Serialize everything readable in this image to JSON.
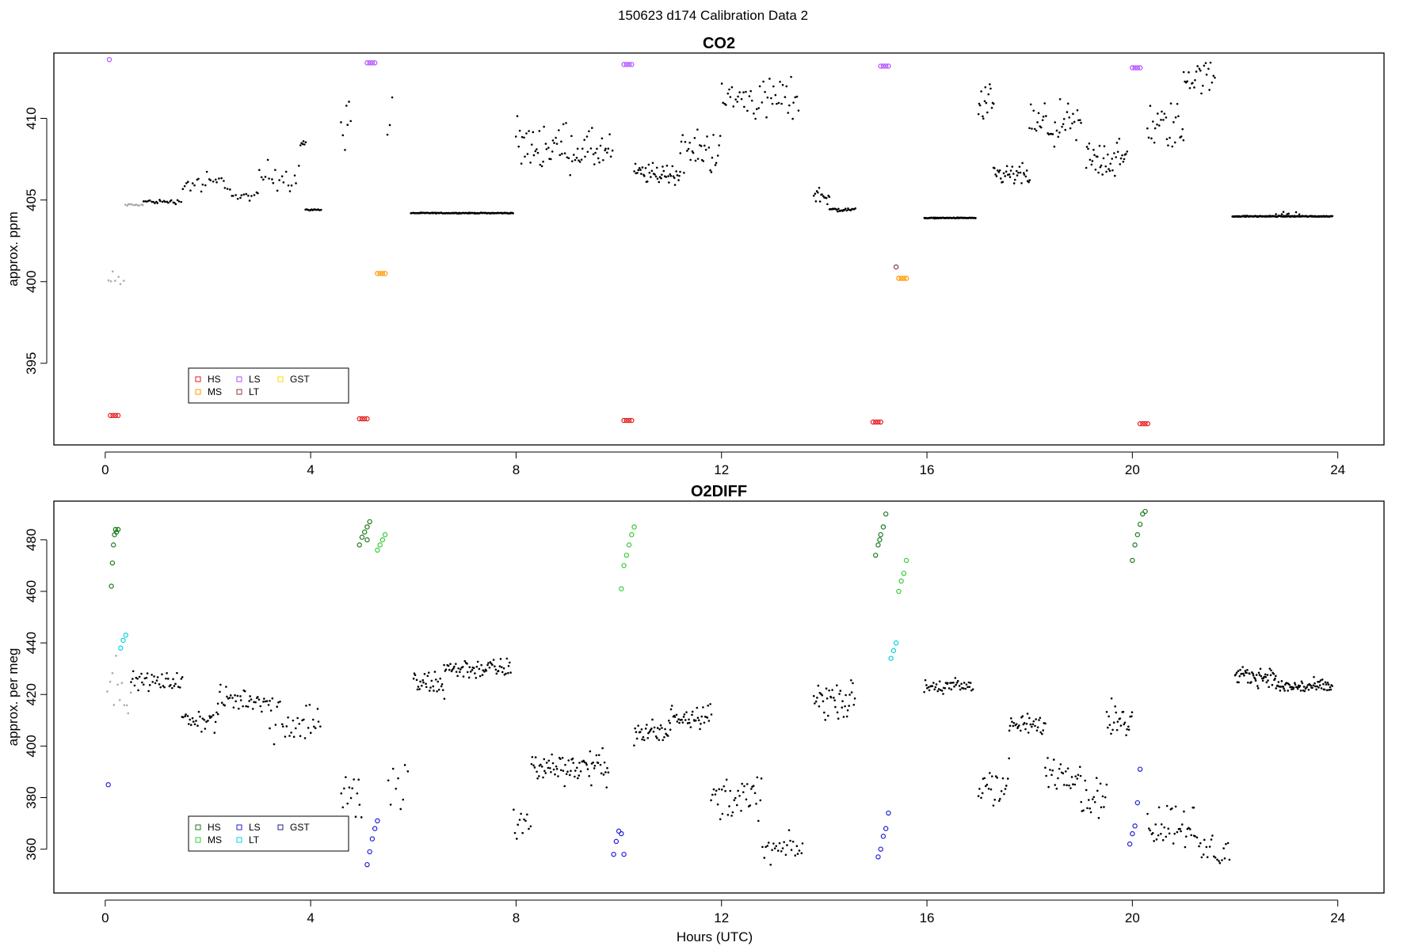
{
  "figure": {
    "suptitle": "150623   d174   Calibration Data 2",
    "xlabel": "Hours (UTC)"
  },
  "chart_data": [
    {
      "type": "scatter",
      "title": "CO2",
      "xlabel": "",
      "ylabel": "approx. ppm",
      "xlim": [
        -1.0,
        24.9
      ],
      "ylim": [
        390.0,
        414.0
      ],
      "xticks": [
        0,
        4,
        8,
        12,
        16,
        20,
        24
      ],
      "yticks": [
        395,
        400,
        405,
        410
      ],
      "grid": false,
      "legend": {
        "placement": "bottom-left",
        "entries": [
          {
            "label": "HS",
            "color": "#e41a1c"
          },
          {
            "label": "MS",
            "color": "#ff9900"
          },
          {
            "label": "LS",
            "color": "#b24fff"
          },
          {
            "label": "LT",
            "color": "#8b3a3a"
          },
          {
            "label": "GST",
            "color": "#ffd700"
          }
        ]
      },
      "series": [
        {
          "name": "HS",
          "color": "#e41a1c",
          "marker": "open-circle",
          "points": [
            [
              0.1,
              391.8
            ],
            [
              0.15,
              391.8
            ],
            [
              0.2,
              391.8
            ],
            [
              0.25,
              391.8
            ],
            [
              4.95,
              391.6
            ],
            [
              5.0,
              391.6
            ],
            [
              5.05,
              391.6
            ],
            [
              5.1,
              391.6
            ],
            [
              10.1,
              391.5
            ],
            [
              10.15,
              391.5
            ],
            [
              10.2,
              391.5
            ],
            [
              10.25,
              391.5
            ],
            [
              14.95,
              391.4
            ],
            [
              15.0,
              391.4
            ],
            [
              15.05,
              391.4
            ],
            [
              15.1,
              391.4
            ],
            [
              20.15,
              391.3
            ],
            [
              20.2,
              391.3
            ],
            [
              20.25,
              391.3
            ],
            [
              20.3,
              391.3
            ]
          ]
        },
        {
          "name": "MS",
          "color": "#ff9900",
          "marker": "open-circle",
          "points": [
            [
              5.3,
              400.5
            ],
            [
              5.35,
              400.5
            ],
            [
              5.4,
              400.5
            ],
            [
              5.45,
              400.5
            ],
            [
              15.45,
              400.2
            ],
            [
              15.5,
              400.2
            ],
            [
              15.55,
              400.2
            ],
            [
              15.6,
              400.2
            ]
          ]
        },
        {
          "name": "LS",
          "color": "#b24fff",
          "marker": "open-circle",
          "points": [
            [
              0.08,
              413.6
            ],
            [
              5.1,
              413.4
            ],
            [
              5.15,
              413.4
            ],
            [
              5.2,
              413.4
            ],
            [
              5.25,
              413.4
            ],
            [
              10.1,
              413.3
            ],
            [
              10.15,
              413.3
            ],
            [
              10.2,
              413.3
            ],
            [
              10.25,
              413.3
            ],
            [
              15.1,
              413.2
            ],
            [
              15.15,
              413.2
            ],
            [
              15.2,
              413.2
            ],
            [
              15.25,
              413.2
            ],
            [
              20.0,
              413.1
            ],
            [
              20.05,
              413.1
            ],
            [
              20.1,
              413.1
            ],
            [
              20.15,
              413.1
            ]
          ]
        },
        {
          "name": "LT",
          "color": "#8b3a3a",
          "marker": "open-circle",
          "points": [
            [
              15.4,
              400.9
            ]
          ]
        },
        {
          "name": "GST",
          "color": "#ffd700",
          "marker": "open-circle",
          "points": []
        }
      ]
    },
    {
      "type": "scatter",
      "title": "O2DIFF",
      "xlabel": "Hours (UTC)",
      "ylabel": "approx. per meg",
      "xlim": [
        -1.0,
        24.9
      ],
      "ylim": [
        343.0,
        495.0
      ],
      "xticks": [
        0,
        4,
        8,
        12,
        16,
        20,
        24
      ],
      "yticks": [
        360,
        380,
        400,
        420,
        440,
        460,
        480
      ],
      "grid": false,
      "legend": {
        "placement": "bottom-left",
        "entries": [
          {
            "label": "HS",
            "color": "#1a7a1a"
          },
          {
            "label": "MS",
            "color": "#33cc33"
          },
          {
            "label": "LS",
            "color": "#1f1fd6"
          },
          {
            "label": "LT",
            "color": "#00d5e0"
          },
          {
            "label": "GST",
            "color": "#1f1f8f"
          }
        ]
      },
      "series": [
        {
          "name": "HS",
          "color": "#1a7a1a",
          "marker": "open-circle",
          "points": [
            [
              0.12,
              462
            ],
            [
              0.14,
              471
            ],
            [
              0.16,
              478
            ],
            [
              0.18,
              482
            ],
            [
              0.2,
              484
            ],
            [
              0.22,
              483
            ],
            [
              0.25,
              484
            ],
            [
              4.95,
              478
            ],
            [
              5.0,
              481
            ],
            [
              5.05,
              483
            ],
            [
              5.1,
              485
            ],
            [
              5.15,
              487
            ],
            [
              5.1,
              480
            ],
            [
              15.0,
              474
            ],
            [
              15.05,
              478
            ],
            [
              15.1,
              482
            ],
            [
              15.15,
              485
            ],
            [
              15.2,
              490
            ],
            [
              15.08,
              480
            ],
            [
              20.0,
              472
            ],
            [
              20.05,
              478
            ],
            [
              20.1,
              482
            ],
            [
              20.15,
              486
            ],
            [
              20.2,
              490
            ],
            [
              20.25,
              491
            ]
          ]
        },
        {
          "name": "MS",
          "color": "#33cc33",
          "marker": "open-circle",
          "points": [
            [
              5.3,
              476
            ],
            [
              5.35,
              478
            ],
            [
              5.4,
              480
            ],
            [
              5.45,
              482
            ],
            [
              10.05,
              461
            ],
            [
              10.1,
              470
            ],
            [
              10.15,
              474
            ],
            [
              10.2,
              478
            ],
            [
              10.25,
              482
            ],
            [
              10.3,
              485
            ],
            [
              15.45,
              460
            ],
            [
              15.5,
              464
            ],
            [
              15.55,
              467
            ],
            [
              15.6,
              472
            ]
          ]
        },
        {
          "name": "LS",
          "color": "#1f1fd6",
          "marker": "open-circle",
          "points": [
            [
              0.06,
              385
            ],
            [
              5.1,
              354
            ],
            [
              5.15,
              359
            ],
            [
              5.2,
              364
            ],
            [
              5.25,
              368
            ],
            [
              5.3,
              371
            ],
            [
              9.9,
              358
            ],
            [
              9.95,
              363
            ],
            [
              10.0,
              367
            ],
            [
              10.05,
              366
            ],
            [
              10.1,
              358
            ],
            [
              15.05,
              357
            ],
            [
              15.1,
              360
            ],
            [
              15.15,
              365
            ],
            [
              15.2,
              368
            ],
            [
              15.25,
              374
            ],
            [
              19.95,
              362
            ],
            [
              20.0,
              366
            ],
            [
              20.05,
              369
            ],
            [
              20.1,
              378
            ],
            [
              20.15,
              391
            ]
          ]
        },
        {
          "name": "LT",
          "color": "#00d5e0",
          "marker": "open-circle",
          "points": [
            [
              0.3,
              438
            ],
            [
              0.35,
              441
            ],
            [
              0.4,
              443
            ],
            [
              15.3,
              434
            ],
            [
              15.35,
              437
            ],
            [
              15.4,
              440
            ]
          ]
        },
        {
          "name": "GST",
          "color": "#1f1f8f",
          "marker": "open-circle",
          "points": []
        }
      ]
    }
  ]
}
